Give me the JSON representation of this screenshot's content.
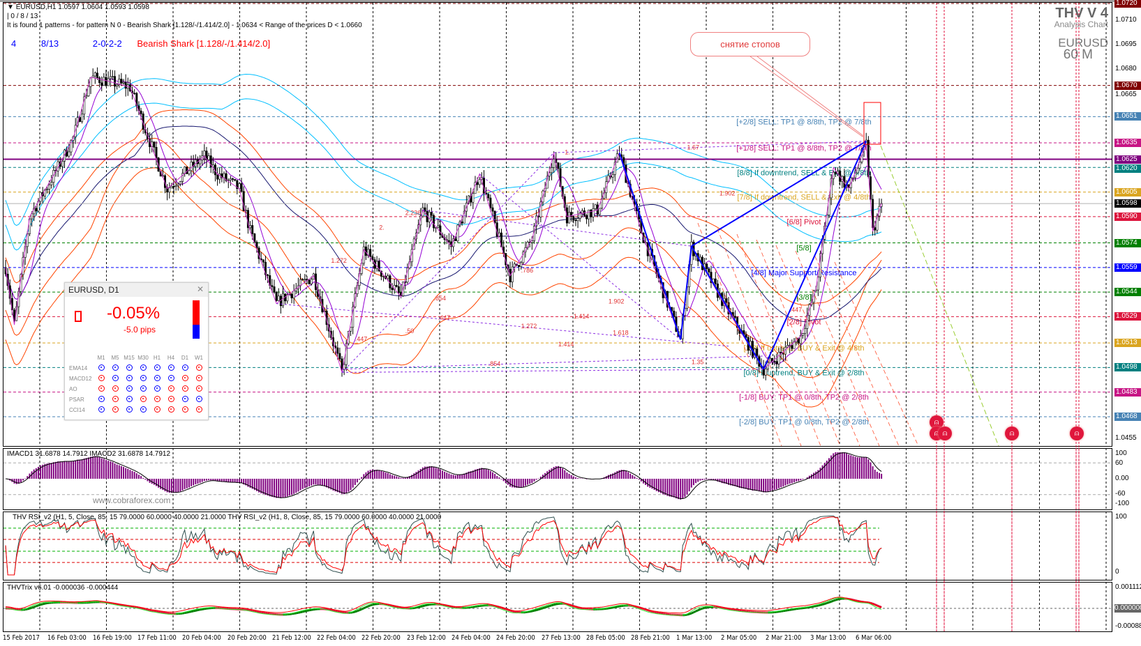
{
  "header": {
    "symbol_line": "EURUSD,H1  1.0597 1.0604 1.0593 1.0598",
    "counter_line": "| 0 / 8 / 13",
    "pattern_line": "It is found 1 patterns  -  for pattern N 0 - Bearish Shark [1.128/-/1.414/2.0] - 1.0634 < Range of the prices D < 1.0660",
    "row": {
      "a": "4",
      "b": "8/13",
      "c": "2-0-2-2",
      "d": "Bearish Shark [1.128/-/1.414/2.0]"
    }
  },
  "logo": {
    "title": "THV V 4",
    "subtitle": "Analysis Chart",
    "symbol": "EURUSD",
    "timeframe": "60 M"
  },
  "callout": "снятие стопов",
  "price_ticks": [
    "1.0710",
    "1.0695",
    "1.0680",
    "1.0665",
    "1.0455"
  ],
  "price_tick_values": [
    1.071,
    1.0695,
    1.068,
    1.0665,
    1.0455
  ],
  "price_levels": [
    {
      "label": "1.0720",
      "price": 1.072,
      "color": "#800000",
      "style": "dash"
    },
    {
      "label": "1.0670",
      "price": 1.067,
      "color": "#800000",
      "style": "dash"
    },
    {
      "label": "1.0651",
      "price": 1.0651,
      "color": "#4682b4",
      "style": "dash"
    },
    {
      "label": "1.0635",
      "price": 1.0635,
      "color": "#c71585",
      "style": "dash"
    },
    {
      "label": "1.0625",
      "price": 1.0625,
      "color": "#800080",
      "style": "solid"
    },
    {
      "label": "1.0620",
      "price": 1.062,
      "color": "#008080",
      "style": "dash"
    },
    {
      "label": "1.0605",
      "price": 1.0605,
      "color": "#daa520",
      "style": "dash"
    },
    {
      "label": "1.0598",
      "price": 1.0598,
      "color": "#000000",
      "style": "current"
    },
    {
      "label": "1.0590",
      "price": 1.059,
      "color": "#dc143c",
      "style": "dash"
    },
    {
      "label": "1.0574",
      "price": 1.0574,
      "color": "#008000",
      "style": "dash"
    },
    {
      "label": "1.0559",
      "price": 1.0559,
      "color": "#0000ff",
      "style": "dash"
    },
    {
      "label": "1.0544",
      "price": 1.0544,
      "color": "#008000",
      "style": "dash"
    },
    {
      "label": "1.0529",
      "price": 1.0529,
      "color": "#dc143c",
      "style": "dash"
    },
    {
      "label": "1.0513",
      "price": 1.0513,
      "color": "#daa520",
      "style": "dash"
    },
    {
      "label": "1.0498",
      "price": 1.0498,
      "color": "#008080",
      "style": "dash"
    },
    {
      "label": "1.0483",
      "price": 1.0483,
      "color": "#c71585",
      "style": "dash"
    },
    {
      "label": "1.0468",
      "price": 1.0468,
      "color": "#4682b4",
      "style": "dash"
    }
  ],
  "murrey": [
    {
      "text": "[+2/8] SELL: TP1 @ 8/8th, TP2 @ 7/8th",
      "price": 1.0651,
      "color": "#4682b4"
    },
    {
      "text": "[+1/8] SELL: TP1 @ 8/8th, TP2 @ 7/8th",
      "price": 1.0635,
      "color": "#c71585"
    },
    {
      "text": "[8/8] If downtrend, SELL & Exit @ 6/8th",
      "price": 1.062,
      "color": "#008080"
    },
    {
      "text": "[7/8] If downtrend, SELL & Exit @ 4/8th",
      "price": 1.0605,
      "color": "#daa520"
    },
    {
      "text": "[6/8] Pivot",
      "price": 1.059,
      "color": "#dc143c"
    },
    {
      "text": "[5/8]",
      "price": 1.0574,
      "color": "#008000"
    },
    {
      "text": "[4/8] Major Support/Resistance",
      "price": 1.0559,
      "color": "#0000ff"
    },
    {
      "text": "[3/8]",
      "price": 1.0544,
      "color": "#008000"
    },
    {
      "text": "[2/8] Pivot",
      "price": 1.0529,
      "color": "#dc143c"
    },
    {
      "text": "[1/8] If uptrend, BUY & Exit @ 4/8th",
      "price": 1.0513,
      "color": "#daa520"
    },
    {
      "text": "[0/8] If uptrend, BUY & Exit @ 2/8th",
      "price": 1.0498,
      "color": "#008080"
    },
    {
      "text": "[-1/8] BUY: TP1 @ 0/8th, TP2 @ 2/8th",
      "price": 1.0483,
      "color": "#c71585"
    },
    {
      "text": "[-2/8] BUY: TP1 @ 0/8th, TP2 @ 2/8th",
      "price": 1.0468,
      "color": "#4682b4"
    }
  ],
  "price_path": [
    [
      0,
      1.0559
    ],
    [
      4,
      1.0524
    ],
    [
      11,
      1.059
    ],
    [
      24,
      1.062
    ],
    [
      31,
      1.0638
    ],
    [
      39,
      1.0675
    ],
    [
      46,
      1.0673
    ],
    [
      57,
      1.0669
    ],
    [
      69,
      1.0625
    ],
    [
      74,
      1.0607
    ],
    [
      91,
      1.0627
    ],
    [
      97,
      1.0616
    ],
    [
      107,
      1.0607
    ],
    [
      112,
      1.0581
    ],
    [
      124,
      1.0537
    ],
    [
      141,
      1.0554
    ],
    [
      154,
      1.0495
    ],
    [
      164,
      1.057
    ],
    [
      181,
      1.0541
    ],
    [
      191,
      1.0594
    ],
    [
      204,
      1.0572
    ],
    [
      217,
      1.0616
    ],
    [
      231,
      1.0554
    ],
    [
      241,
      1.0576
    ],
    [
      251,
      1.0629
    ],
    [
      257,
      1.059
    ],
    [
      271,
      1.0594
    ],
    [
      281,
      1.0629
    ],
    [
      291,
      1.0581
    ],
    [
      309,
      1.0515
    ],
    [
      314,
      1.0572
    ],
    [
      331,
      1.0532
    ],
    [
      347,
      1.0497
    ],
    [
      364,
      1.0517
    ],
    [
      371,
      1.0546
    ],
    [
      379,
      1.062
    ],
    [
      386,
      1.0607
    ],
    [
      394,
      1.0634
    ],
    [
      397,
      1.0581
    ],
    [
      401,
      1.0598
    ]
  ],
  "harmonic": {
    "X": [
      281,
      1.0629
    ],
    "A": [
      309,
      1.0515
    ],
    "B": [
      314,
      1.0572
    ],
    "C": [
      347,
      1.0497
    ],
    "D": [
      394,
      1.0636
    ]
  },
  "fib_labels": [
    {
      "text": "1.272",
      "bar": 149,
      "price": 1.0562
    },
    {
      "text": "2.236",
      "bar": 183,
      "price": 1.0591
    },
    {
      "text": "2.",
      "bar": 171,
      "price": 1.0582
    },
    {
      "text": ".786",
      "bar": 236,
      "price": 1.0556
    },
    {
      "text": ".854",
      "bar": 196,
      "price": 1.0539
    },
    {
      "text": ".447",
      "bar": 198,
      "price": 1.0527
    },
    {
      "text": "1.272",
      "bar": 236,
      "price": 1.0522
    },
    {
      "text": ".50",
      "bar": 183,
      "price": 1.0519
    },
    {
      "text": "1.414",
      "bar": 253,
      "price": 1.0511
    },
    {
      "text": ".854",
      "bar": 221,
      "price": 1.0499
    },
    {
      "text": "1.414",
      "bar": 260,
      "price": 1.0528
    },
    {
      "text": "1.902",
      "bar": 276,
      "price": 1.0537
    },
    {
      "text": "1.618",
      "bar": 278,
      "price": 1.0518
    },
    {
      "text": "1.35",
      "bar": 314,
      "price": 1.05
    },
    {
      "text": "1.67",
      "bar": 312,
      "price": 1.0631
    },
    {
      "text": ".447",
      "bar": 359,
      "price": 1.0532
    },
    {
      "text": ".447",
      "bar": 160,
      "price": 1.0514
    },
    {
      "text": "1.",
      "bar": 256,
      "price": 1.0628
    },
    {
      "text": "1.902",
      "bar": 339,
      "price": 1.0603
    }
  ],
  "d1_panel": {
    "title": "EURUSD, D1",
    "change_pct": "-0.05%",
    "change_pips": "-5.0 pips",
    "columns": [
      "M1",
      "M5",
      "M15",
      "M30",
      "H1",
      "H4",
      "D1",
      "W1"
    ],
    "rows": [
      {
        "name": "EMA14",
        "signals": [
          "b",
          "b",
          "b",
          "b",
          "b",
          "b",
          "b",
          "r"
        ]
      },
      {
        "name": "MACD12",
        "signals": [
          "r",
          "b",
          "b",
          "b",
          "b",
          "b",
          "r",
          "r"
        ]
      },
      {
        "name": "AO",
        "signals": [
          "r",
          "r",
          "b",
          "b",
          "b",
          "r",
          "r",
          "r"
        ]
      },
      {
        "name": "PSAR",
        "signals": [
          "b",
          "r",
          "b",
          "r",
          "r",
          "r",
          "b",
          "b"
        ]
      },
      {
        "name": "CCI14",
        "signals": [
          "b",
          "r",
          "b",
          "b",
          "r",
          "r",
          "r",
          "r"
        ]
      }
    ],
    "bull_color": "#0000ff",
    "bear_color": "#ff0000"
  },
  "macd": {
    "header": "IMACD1 31.6878 14.7912  IMACD2 31.6878 14.7912",
    "watermark": "www.cobraforex.com",
    "ticks": [
      "100",
      "60",
      "0.00",
      "-60",
      "-100"
    ],
    "tick_values": [
      100,
      60,
      0,
      -60,
      -100
    ]
  },
  "rsi": {
    "header": "THV RSI_v2  (H1,  5,  Close,  85,  15 79.0000 60.0000 40.0000 21.0000     THV RSI_v2  (H1,  8,  Close,  85,  15 79.0000 60.0000 40.0000 21.0000",
    "ticks": [
      "100",
      "0"
    ],
    "levels": [
      79,
      60,
      40,
      21
    ]
  },
  "trix": {
    "header": "THVTrix v6.01 -0.000036 -0.000444",
    "ticks": [
      "0.001112",
      "0.000000",
      "-0.00088"
    ]
  },
  "time_labels": [
    "15 Feb 2017",
    "16 Feb 03:00",
    "16 Feb 19:00",
    "17 Feb 11:00",
    "20 Feb 04:00",
    "20 Feb 20:00",
    "21 Feb 12:00",
    "22 Feb 04:00",
    "22 Feb 20:00",
    "23 Feb 12:00",
    "24 Feb 04:00",
    "24 Feb 20:00",
    "27 Feb 13:00",
    "28 Feb 05:00",
    "28 Feb 21:00",
    "1 Mar 13:00",
    "2 Mar 05:00",
    "2 Mar 21:00",
    "3 Mar 13:00",
    "6 Mar 06:00"
  ],
  "colors": {
    "bull": "#ffffff",
    "bear": "#000000",
    "pattern": "#0000ff",
    "zigzag": "#cc33cc",
    "ma_fast": "#9400d3",
    "ma_slow": "#191970",
    "envelope": "#00bfff",
    "band": "#ff4500"
  }
}
